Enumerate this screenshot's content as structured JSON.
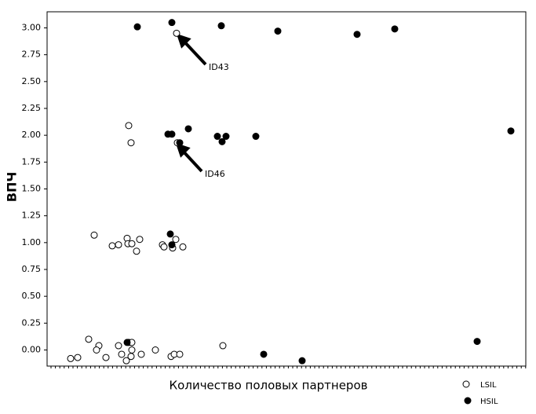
{
  "chart_data": {
    "type": "scatter",
    "ylabel": "ВПЧ",
    "xlabel": "Количество половых партнеров",
    "xlim": [
      0,
      12.2
    ],
    "ylim": [
      -0.15,
      3.15
    ],
    "yticks": [
      {
        "value": 0,
        "label": "0.00"
      },
      {
        "value": 0.25,
        "label": "0.25"
      },
      {
        "value": 0.5,
        "label": "0.50"
      },
      {
        "value": 0.75,
        "label": "0.75"
      },
      {
        "value": 1,
        "label": "1.00"
      },
      {
        "value": 1.25,
        "label": "1.25"
      },
      {
        "value": 1.5,
        "label": "1.50"
      },
      {
        "value": 1.75,
        "label": "1.75"
      },
      {
        "value": 2,
        "label": "2.00"
      },
      {
        "value": 2.25,
        "label": "2.25"
      },
      {
        "value": 2.5,
        "label": "2.50"
      },
      {
        "value": 2.75,
        "label": "2.75"
      },
      {
        "value": 3,
        "label": "3.00"
      }
    ],
    "series": [
      {
        "name": "LSIL",
        "color": "#ffffff",
        "x": [
          2.08,
          2.14,
          3.3,
          3.32,
          1.2,
          1.66,
          1.82,
          2.04,
          2.06,
          2.16,
          2.36,
          2.28,
          2.94,
          2.98,
          3.28,
          3.2,
          3.46,
          1.06,
          1.32,
          1.26,
          1.82,
          2.08,
          2.16,
          2.16,
          1.9,
          2.14,
          2.4,
          2.76,
          1.5,
          0.78,
          0.6,
          2.02,
          3.16,
          3.24,
          3.38,
          4.48
        ],
        "values": [
          2.09,
          1.93,
          2.95,
          1.93,
          1.07,
          0.97,
          0.98,
          1.04,
          0.99,
          0.99,
          1.03,
          0.92,
          0.98,
          0.96,
          1.03,
          0.95,
          0.96,
          0.1,
          0.04,
          0,
          0.04,
          0.07,
          0.07,
          0,
          -0.04,
          -0.06,
          -0.04,
          0,
          -0.07,
          -0.07,
          -0.08,
          -0.1,
          -0.06,
          -0.04,
          -0.04,
          0.04
        ]
      },
      {
        "name": "HSIL",
        "color": "#000000",
        "x": [
          2.3,
          3.18,
          4.44,
          5.88,
          7.9,
          8.86,
          3.08,
          3.18,
          3.6,
          3.38,
          4.34,
          4.46,
          4.56,
          5.32,
          11.82,
          3.14,
          3.18,
          2.04,
          5.52,
          6.5,
          10.96
        ],
        "values": [
          3.01,
          3.05,
          3.02,
          2.97,
          2.94,
          2.99,
          2.01,
          2.01,
          2.06,
          1.93,
          1.99,
          1.94,
          1.99,
          1.99,
          2.04,
          1.08,
          0.98,
          0.07,
          -0.04,
          -0.1,
          0.08
        ]
      }
    ],
    "annotations": [
      "ID43",
      "ID46"
    ]
  }
}
